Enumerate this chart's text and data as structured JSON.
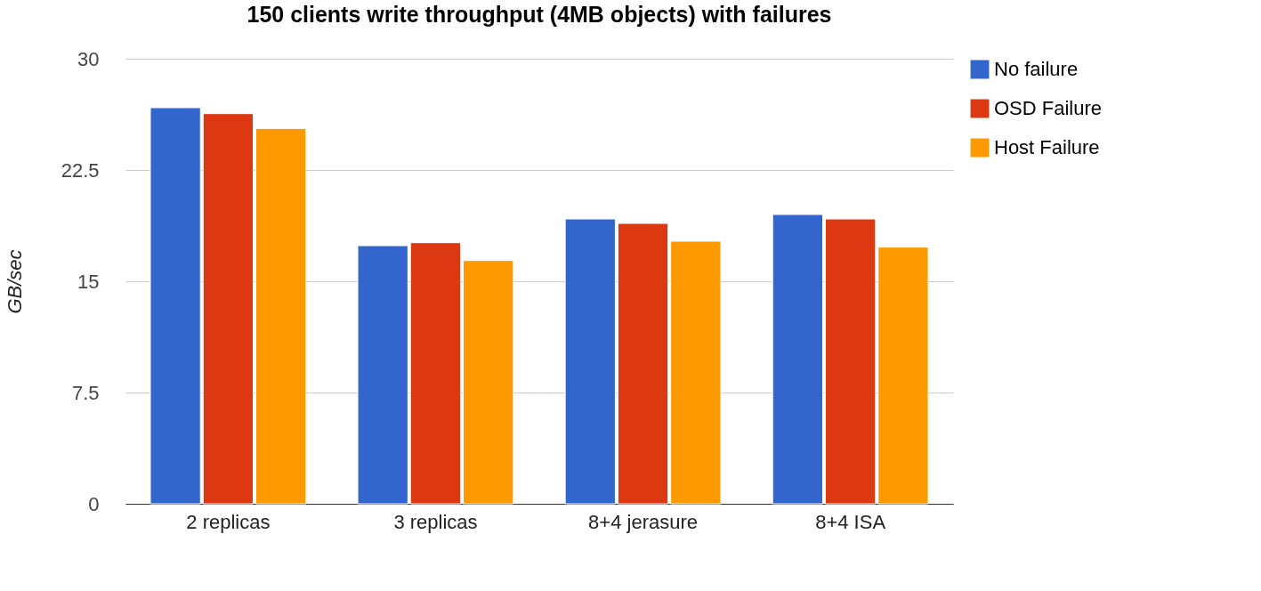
{
  "chart_data": {
    "type": "bar",
    "title": "150 clients write throughput (4MB objects) with failures",
    "ylabel": "GB/sec",
    "categories": [
      "2 replicas",
      "3 replicas",
      "8+4 jerasure",
      "8+4 ISA"
    ],
    "series": [
      {
        "name": "No failure",
        "color": "#3366cc",
        "values": [
          26.7,
          17.4,
          19.2,
          19.5
        ]
      },
      {
        "name": "OSD Failure",
        "color": "#dc3912",
        "values": [
          26.3,
          17.6,
          18.9,
          19.2
        ]
      },
      {
        "name": "Host Failure",
        "color": "#ff9900",
        "values": [
          25.3,
          16.4,
          17.7,
          17.3
        ]
      }
    ],
    "ylim": [
      0,
      30
    ],
    "yticks": [
      0,
      7.5,
      15,
      22.5,
      30
    ],
    "grid": "y",
    "legend": "top right"
  }
}
